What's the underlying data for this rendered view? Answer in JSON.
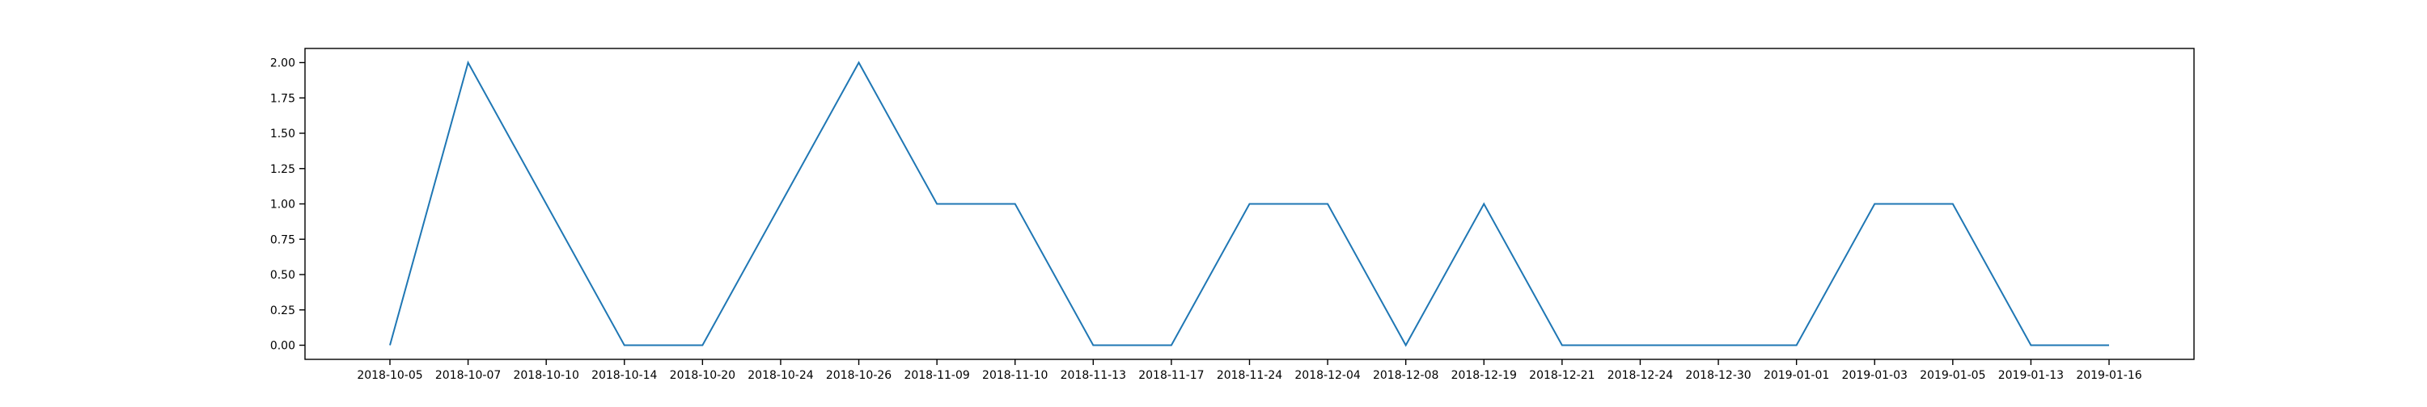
{
  "chart_data": {
    "type": "line",
    "title": "",
    "xlabel": "",
    "ylabel": "",
    "categories": [
      "2018-10-05",
      "2018-10-07",
      "2018-10-10",
      "2018-10-14",
      "2018-10-20",
      "2018-10-24",
      "2018-10-26",
      "2018-11-09",
      "2018-11-10",
      "2018-11-13",
      "2018-11-17",
      "2018-11-24",
      "2018-12-04",
      "2018-12-08",
      "2018-12-19",
      "2018-12-21",
      "2018-12-24",
      "2018-12-30",
      "2019-01-01",
      "2019-01-03",
      "2019-01-05",
      "2019-01-13",
      "2019-01-16"
    ],
    "series": [
      {
        "values": [
          0,
          2,
          1,
          0,
          0,
          1,
          2,
          1,
          1,
          0,
          0,
          1,
          1,
          0,
          1,
          0,
          0,
          0,
          0,
          1,
          1,
          0,
          0
        ],
        "color": "#1f77b4"
      }
    ],
    "ylim": [
      -0.1,
      2.1
    ],
    "yticks": [
      "0.00",
      "0.25",
      "0.50",
      "0.75",
      "1.00",
      "1.25",
      "1.50",
      "1.75",
      "2.00"
    ],
    "grid": false,
    "legend": "none"
  }
}
